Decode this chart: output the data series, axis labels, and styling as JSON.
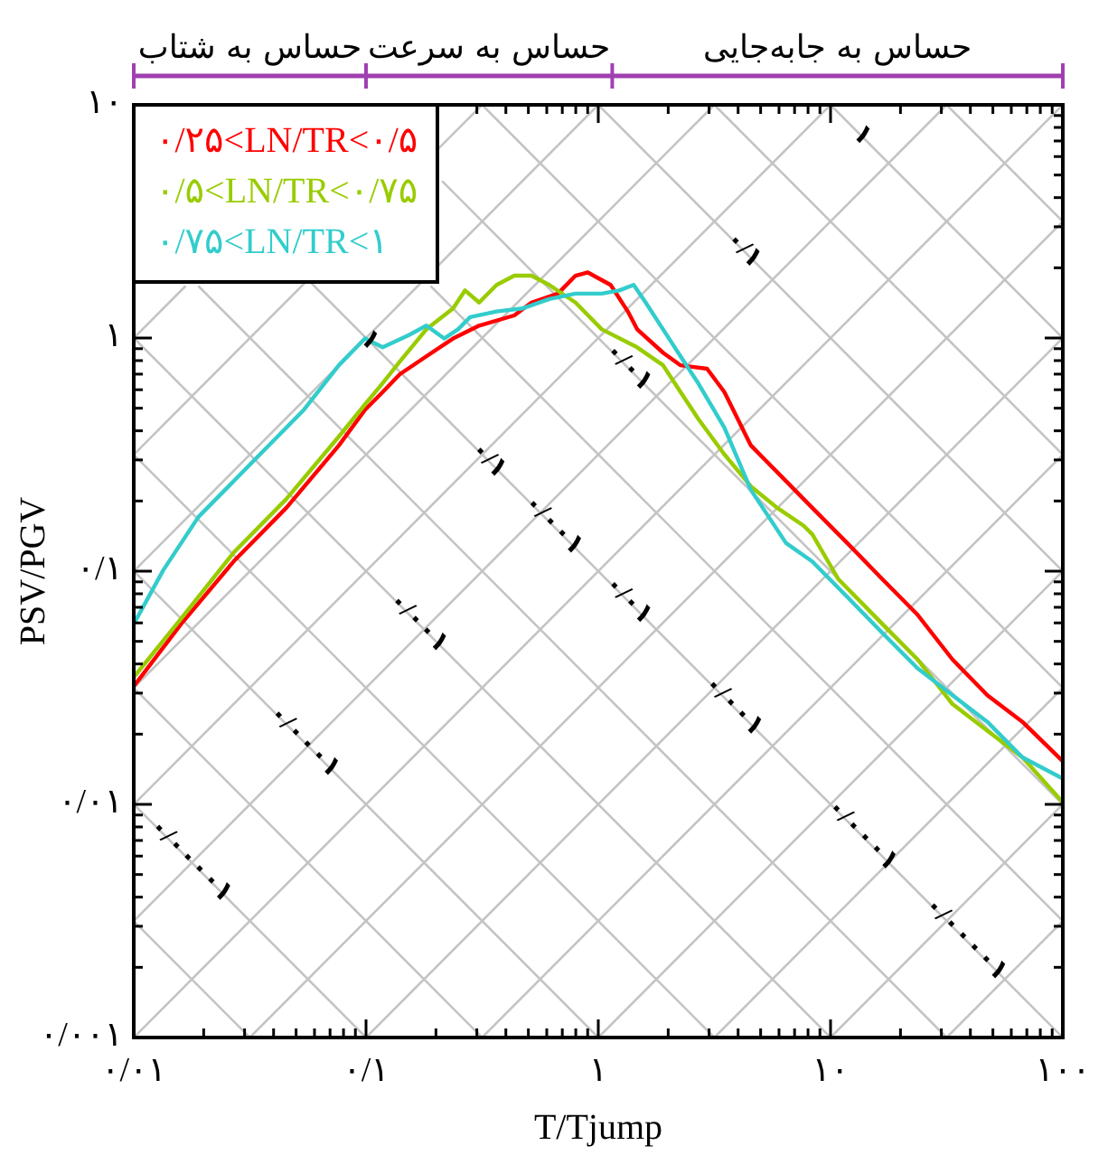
{
  "chart_data": {
    "type": "line",
    "xlabel": "T/Tjump",
    "ylabel": "PSV/PGV",
    "log": "xy",
    "legend": "top left",
    "line_style": "solid",
    "xlim": [
      0.01,
      100
    ],
    "ylim": [
      0.001,
      10
    ],
    "xticks": [
      {
        "value": 0.01,
        "label": "۰/۰۱"
      },
      {
        "value": 0.02,
        "label": null
      },
      {
        "value": 0.03,
        "label": null
      },
      {
        "value": 0.04,
        "label": null
      },
      {
        "value": 0.05,
        "label": null
      },
      {
        "value": 0.06,
        "label": null
      },
      {
        "value": 0.07,
        "label": null
      },
      {
        "value": 0.08,
        "label": null
      },
      {
        "value": 0.09,
        "label": null
      },
      {
        "value": 0.1,
        "label": "۰/۱"
      },
      {
        "value": 0.2,
        "label": null
      },
      {
        "value": 0.3,
        "label": null
      },
      {
        "value": 0.4,
        "label": null
      },
      {
        "value": 0.5,
        "label": null
      },
      {
        "value": 0.6,
        "label": null
      },
      {
        "value": 0.7,
        "label": null
      },
      {
        "value": 0.8,
        "label": null
      },
      {
        "value": 0.9,
        "label": null
      },
      {
        "value": 1,
        "label": "۱"
      },
      {
        "value": 2,
        "label": null
      },
      {
        "value": 3,
        "label": null
      },
      {
        "value": 4,
        "label": null
      },
      {
        "value": 5,
        "label": null
      },
      {
        "value": 6,
        "label": null
      },
      {
        "value": 7,
        "label": null
      },
      {
        "value": 8,
        "label": null
      },
      {
        "value": 9,
        "label": null
      },
      {
        "value": 10,
        "label": "۱۰"
      },
      {
        "value": 20,
        "label": null
      },
      {
        "value": 30,
        "label": null
      },
      {
        "value": 40,
        "label": null
      },
      {
        "value": 50,
        "label": null
      },
      {
        "value": 60,
        "label": null
      },
      {
        "value": 70,
        "label": null
      },
      {
        "value": 80,
        "label": null
      },
      {
        "value": 90,
        "label": null
      },
      {
        "value": 100,
        "label": "۱۰۰"
      }
    ],
    "yticks": [
      {
        "value": 0.001,
        "label": "۰/۰۰۱"
      },
      {
        "value": 0.002,
        "label": null
      },
      {
        "value": 0.003,
        "label": null
      },
      {
        "value": 0.004,
        "label": null
      },
      {
        "value": 0.005,
        "label": null
      },
      {
        "value": 0.006,
        "label": null
      },
      {
        "value": 0.007,
        "label": null
      },
      {
        "value": 0.008,
        "label": null
      },
      {
        "value": 0.009,
        "label": null
      },
      {
        "value": 0.01,
        "label": "۰/۰۱"
      },
      {
        "value": 0.02,
        "label": null
      },
      {
        "value": 0.03,
        "label": null
      },
      {
        "value": 0.04,
        "label": null
      },
      {
        "value": 0.05,
        "label": null
      },
      {
        "value": 0.06,
        "label": null
      },
      {
        "value": 0.07,
        "label": null
      },
      {
        "value": 0.08,
        "label": null
      },
      {
        "value": 0.09,
        "label": null
      },
      {
        "value": 0.1,
        "label": "۰/۱"
      },
      {
        "value": 0.2,
        "label": null
      },
      {
        "value": 0.3,
        "label": null
      },
      {
        "value": 0.4,
        "label": null
      },
      {
        "value": 0.5,
        "label": null
      },
      {
        "value": 0.6,
        "label": null
      },
      {
        "value": 0.7,
        "label": null
      },
      {
        "value": 0.8,
        "label": null
      },
      {
        "value": 0.9,
        "label": null
      },
      {
        "value": 1,
        "label": "۱"
      },
      {
        "value": 2,
        "label": null
      },
      {
        "value": 3,
        "label": null
      },
      {
        "value": 4,
        "label": null
      },
      {
        "value": 5,
        "label": null
      },
      {
        "value": 6,
        "label": null
      },
      {
        "value": 7,
        "label": null
      },
      {
        "value": 8,
        "label": null
      },
      {
        "value": 9,
        "label": null
      },
      {
        "value": 10,
        "label": "۱۰"
      }
    ],
    "annotations": [
      "حساس به شتاب",
      "حساس به سرعت",
      "حساس به جابه‌جایی",
      {
        "text": "۱",
        "x": 13.6,
        "y": 7.35
      },
      {
        "text": "۰/۱",
        "x": 4.2,
        "y": 2.38
      },
      {
        "text": "۰/۰۱",
        "x": 1.34,
        "y": 0.746
      },
      {
        "text": "۱",
        "x": 0.103,
        "y": 0.97
      },
      {
        "text": "۰/۱",
        "x": 0.335,
        "y": 0.2985
      },
      {
        "text": "۰/۰۰۱",
        "x": 0.637,
        "y": 0.157
      },
      {
        "text": "۰/۰۱",
        "x": 1.34,
        "y": 0.0746
      },
      {
        "text": "۰/۰۰۱",
        "x": 0.167,
        "y": 0.0598
      },
      {
        "text": "۰/۰۰۱",
        "x": 3.8,
        "y": 0.0263
      },
      {
        "text": "۰/۰۰۰۱",
        "x": 0.054,
        "y": 0.0185
      },
      {
        "text": "۰/۰۰۰۱",
        "x": 13.6,
        "y": 0.00735
      },
      {
        "text": "۰/۰۰۰۰۱",
        "x": 0.0175,
        "y": 0.00571
      },
      {
        "text": "۰/۰۰۰۰۱",
        "x": 38,
        "y": 0.00263
      }
    ],
    "series": [
      {
        "name": "۰/۲۵<LN/TR<۰/۵",
        "color": "#ff0000",
        "x": [
          0.01,
          0.016,
          0.0269,
          0.0454,
          0.0764,
          0.099,
          0.118,
          0.14,
          0.182,
          0.237,
          0.307,
          0.435,
          0.516,
          0.67,
          0.798,
          0.902,
          1.13,
          1.34,
          1.47,
          1.9,
          2.26,
          2.94,
          3.49,
          4.54,
          5.89,
          8.34,
          11.8,
          16.7,
          23.7,
          33.5,
          47.3,
          67,
          100
        ],
        "values": [
          0.0321,
          0.0594,
          0.11,
          0.187,
          0.346,
          0.492,
          0.587,
          0.7,
          0.835,
          0.995,
          1.13,
          1.25,
          1.42,
          1.55,
          1.85,
          1.91,
          1.69,
          1.3,
          1.09,
          0.865,
          0.764,
          0.738,
          0.587,
          0.346,
          0.266,
          0.187,
          0.132,
          0.0925,
          0.065,
          0.0418,
          0.0294,
          0.0226,
          0.0153
        ]
      },
      {
        "name": "۰/۵<LN/TR<۰/۷۵",
        "color": "#99cc00",
        "x": [
          0.01,
          0.016,
          0.0269,
          0.0454,
          0.0764,
          0.099,
          0.118,
          0.14,
          0.182,
          0.237,
          0.267,
          0.307,
          0.365,
          0.435,
          0.516,
          0.615,
          0.798,
          1.035,
          1.47,
          1.9,
          2.26,
          2.69,
          3.49,
          4.54,
          5.89,
          7.64,
          8.34,
          10.8,
          16.7,
          23.7,
          33.5,
          47.3,
          67,
          100
        ],
        "values": [
          0.0351,
          0.0627,
          0.12,
          0.204,
          0.378,
          0.519,
          0.641,
          0.793,
          1.09,
          1.34,
          1.6,
          1.42,
          1.69,
          1.85,
          1.85,
          1.69,
          1.42,
          1.09,
          0.912,
          0.764,
          0.587,
          0.451,
          0.317,
          0.231,
          0.187,
          0.157,
          0.144,
          0.0925,
          0.0594,
          0.0418,
          0.0269,
          0.0207,
          0.0159,
          0.0102
        ]
      },
      {
        "name": "۰/۷۵<LN/TR<۱",
        "color": "#33cccc",
        "x": [
          0.01,
          0.0134,
          0.019,
          0.0269,
          0.0381,
          0.054,
          0.0764,
          0.099,
          0.118,
          0.153,
          0.182,
          0.217,
          0.249,
          0.281,
          0.365,
          0.473,
          0.615,
          0.798,
          1.035,
          1.23,
          1.42,
          1.6,
          1.9,
          2.26,
          2.69,
          3.49,
          4.54,
          6.43,
          8.34,
          11.8,
          16.7,
          23.7,
          33.5,
          47.3,
          67,
          100
        ],
        "values": [
          0.0594,
          0.101,
          0.171,
          0.243,
          0.346,
          0.492,
          0.764,
          0.995,
          0.912,
          1.03,
          1.13,
          0.995,
          1.09,
          1.23,
          1.3,
          1.34,
          1.47,
          1.55,
          1.55,
          1.6,
          1.69,
          1.42,
          1.09,
          0.835,
          0.641,
          0.413,
          0.223,
          0.132,
          0.11,
          0.0775,
          0.0544,
          0.0383,
          0.0294,
          0.0226,
          0.0159,
          0.0129
        ]
      },
      {
        "color": "#c4c4c4",
        "x": [
          0.01,
          0.0316
        ],
        "values": [
          0.00316,
          0.001
        ]
      },
      {
        "color": "#c4c4c4",
        "x": [
          0.01,
          0.1
        ],
        "values": [
          0.01,
          0.001
        ]
      },
      {
        "color": "#c4c4c4",
        "x": [
          0.01,
          0.316
        ],
        "values": [
          0.0316,
          0.001
        ]
      },
      {
        "color": "#c4c4c4",
        "x": [
          0.01,
          1
        ],
        "values": [
          0.1,
          0.001
        ]
      },
      {
        "color": "#c4c4c4",
        "x": [
          0.01,
          3.16
        ],
        "values": [
          0.316,
          0.001
        ]
      },
      {
        "color": "#c4c4c4",
        "x": [
          0.01,
          10
        ],
        "values": [
          1,
          0.001
        ]
      },
      {
        "color": "#c4c4c4",
        "x": [
          0.0191,
          31.6
        ],
        "values": [
          1.66,
          0.001
        ]
      },
      {
        "color": "#c4c4c4",
        "x": [
          0.01,
          100
        ],
        "values": [
          10,
          0.001
        ]
      },
      {
        "color": "#c4c4c4",
        "x": [
          0.191,
          100
        ],
        "values": [
          1.66,
          0.00316
        ]
      },
      {
        "color": "#c4c4c4",
        "x": [
          0.214,
          100
        ],
        "values": [
          4.68,
          0.01
        ]
      },
      {
        "color": "#c4c4c4",
        "x": [
          0.316,
          100
        ],
        "values": [
          10,
          0.0316
        ]
      },
      {
        "color": "#c4c4c4",
        "x": [
          1,
          100
        ],
        "values": [
          10,
          0.1
        ]
      },
      {
        "color": "#c4c4c4",
        "x": [
          3.16,
          100
        ],
        "values": [
          10,
          0.316
        ]
      },
      {
        "color": "#c4c4c4",
        "x": [
          10,
          100
        ],
        "values": [
          10,
          1
        ]
      },
      {
        "color": "#c4c4c4",
        "x": [
          31.6,
          100
        ],
        "values": [
          10,
          3.16
        ]
      },
      {
        "color": "#c4c4c4",
        "x": [
          31.6,
          100
        ],
        "values": [
          0.001,
          0.00316
        ]
      },
      {
        "color": "#c4c4c4",
        "x": [
          10,
          100
        ],
        "values": [
          0.001,
          0.01
        ]
      },
      {
        "color": "#c4c4c4",
        "x": [
          3.16,
          100
        ],
        "values": [
          0.001,
          0.0316
        ]
      },
      {
        "color": "#c4c4c4",
        "x": [
          1,
          100
        ],
        "values": [
          0.001,
          0.1
        ]
      },
      {
        "color": "#c4c4c4",
        "x": [
          0.316,
          100
        ],
        "values": [
          0.001,
          0.316
        ]
      },
      {
        "color": "#c4c4c4",
        "x": [
          0.1,
          100
        ],
        "values": [
          0.001,
          1
        ]
      },
      {
        "color": "#c4c4c4",
        "x": [
          0.0316,
          100
        ],
        "values": [
          0.001,
          3.16
        ]
      },
      {
        "color": "#c4c4c4",
        "x": [
          0.01,
          100
        ],
        "values": [
          0.001,
          10
        ]
      },
      {
        "color": "#c4c4c4",
        "x": [
          0.01,
          31.6
        ],
        "values": [
          0.00316,
          10
        ]
      },
      {
        "color": "#c4c4c4",
        "x": [
          0.01,
          10
        ],
        "values": [
          0.01,
          10
        ]
      },
      {
        "color": "#c4c4c4",
        "x": [
          0.01,
          3.16
        ],
        "values": [
          0.0316,
          10
        ]
      },
      {
        "color": "#c4c4c4",
        "x": [
          0.01,
          1
        ],
        "values": [
          0.1,
          10
        ]
      },
      {
        "color": "#c4c4c4",
        "x": [
          0.01,
          0.316
        ],
        "values": [
          0.316,
          10
        ]
      },
      {
        "color": "#c4c4c4",
        "x": [
          0.01,
          0.0166
        ],
        "values": [
          1,
          1.66
        ]
      }
    ]
  }
}
